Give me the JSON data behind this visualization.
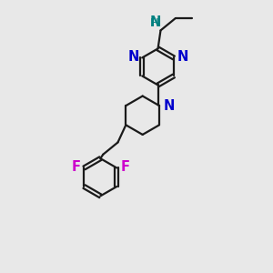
{
  "bg_color": "#e8e8e8",
  "bond_color": "#1a1a1a",
  "N_color": "#0000cc",
  "NH_color": "#008080",
  "F_color": "#cc00cc",
  "label_fontsize": 10.5,
  "small_fontsize": 9.5,
  "linewidth": 1.6,
  "figsize": [
    3.0,
    3.0
  ],
  "dpi": 100,
  "xlim": [
    0,
    10
  ],
  "ylim": [
    0,
    10
  ]
}
